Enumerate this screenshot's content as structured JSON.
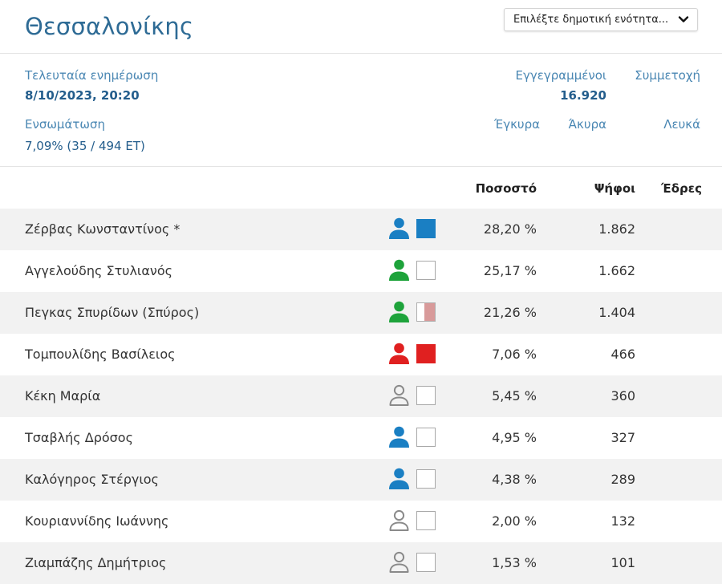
{
  "header": {
    "title": "Θεσσαλονίκης",
    "select_value": "Επιλέξτε δημοτική ενότητα..."
  },
  "stats": {
    "last_update_label": "Τελευταία ενημέρωση",
    "last_update_value": "8/10/2023, 20:20",
    "registered_label": "Εγγεγραμμένοι",
    "registered_value": "16.920",
    "participation_label": "Συμμετοχή",
    "incorporation_label": "Ενσωμάτωση",
    "incorporation_value": "7,09% (35 / 494 ΕΤ)",
    "valid_label": "Έγκυρα",
    "invalid_label": "Άκυρα",
    "blank_label": "Λευκά"
  },
  "table": {
    "headers": {
      "percent": "Ποσοστό",
      "votes": "Ψήφοι",
      "seats": "Έδρες"
    },
    "rows": [
      {
        "name": "Ζέρβας Κωνσταντίνος *",
        "percent": "28,20 %",
        "votes": "1.862",
        "person_color": "#1a7fc3",
        "person_style": "filled",
        "box": "blue"
      },
      {
        "name": "Αγγελούδης Στυλιανός",
        "percent": "25,17 %",
        "votes": "1.662",
        "person_color": "#1ea33b",
        "person_style": "filled",
        "box": "empty"
      },
      {
        "name": "Πεγκας Σπυρίδων (Σπύρος)",
        "percent": "21,26 %",
        "votes": "1.404",
        "person_color": "#1ea33b",
        "person_style": "filled",
        "box": "half-pink"
      },
      {
        "name": "Τομπουλίδης Βασίλειος",
        "percent": "7,06 %",
        "votes": "466",
        "person_color": "#e02020",
        "person_style": "filled",
        "box": "red"
      },
      {
        "name": "Κέκη Μαρία",
        "percent": "5,45 %",
        "votes": "360",
        "person_color": "#8a8a8a",
        "person_style": "outline",
        "box": "empty"
      },
      {
        "name": "Τσαβλής Δρόσος",
        "percent": "4,95 %",
        "votes": "327",
        "person_color": "#1a7fc3",
        "person_style": "filled",
        "box": "empty"
      },
      {
        "name": "Καλόγηρος Στέργιος",
        "percent": "4,38 %",
        "votes": "289",
        "person_color": "#1a7fc3",
        "person_style": "filled",
        "box": "empty"
      },
      {
        "name": "Κουριαννίδης Ιωάννης",
        "percent": "2,00 %",
        "votes": "132",
        "person_color": "#8a8a8a",
        "person_style": "outline",
        "box": "empty"
      },
      {
        "name": "Ζιαμπάζης Δημήτριος",
        "percent": "1,53 %",
        "votes": "101",
        "person_color": "#8a8a8a",
        "person_style": "outline",
        "box": "empty"
      }
    ]
  }
}
